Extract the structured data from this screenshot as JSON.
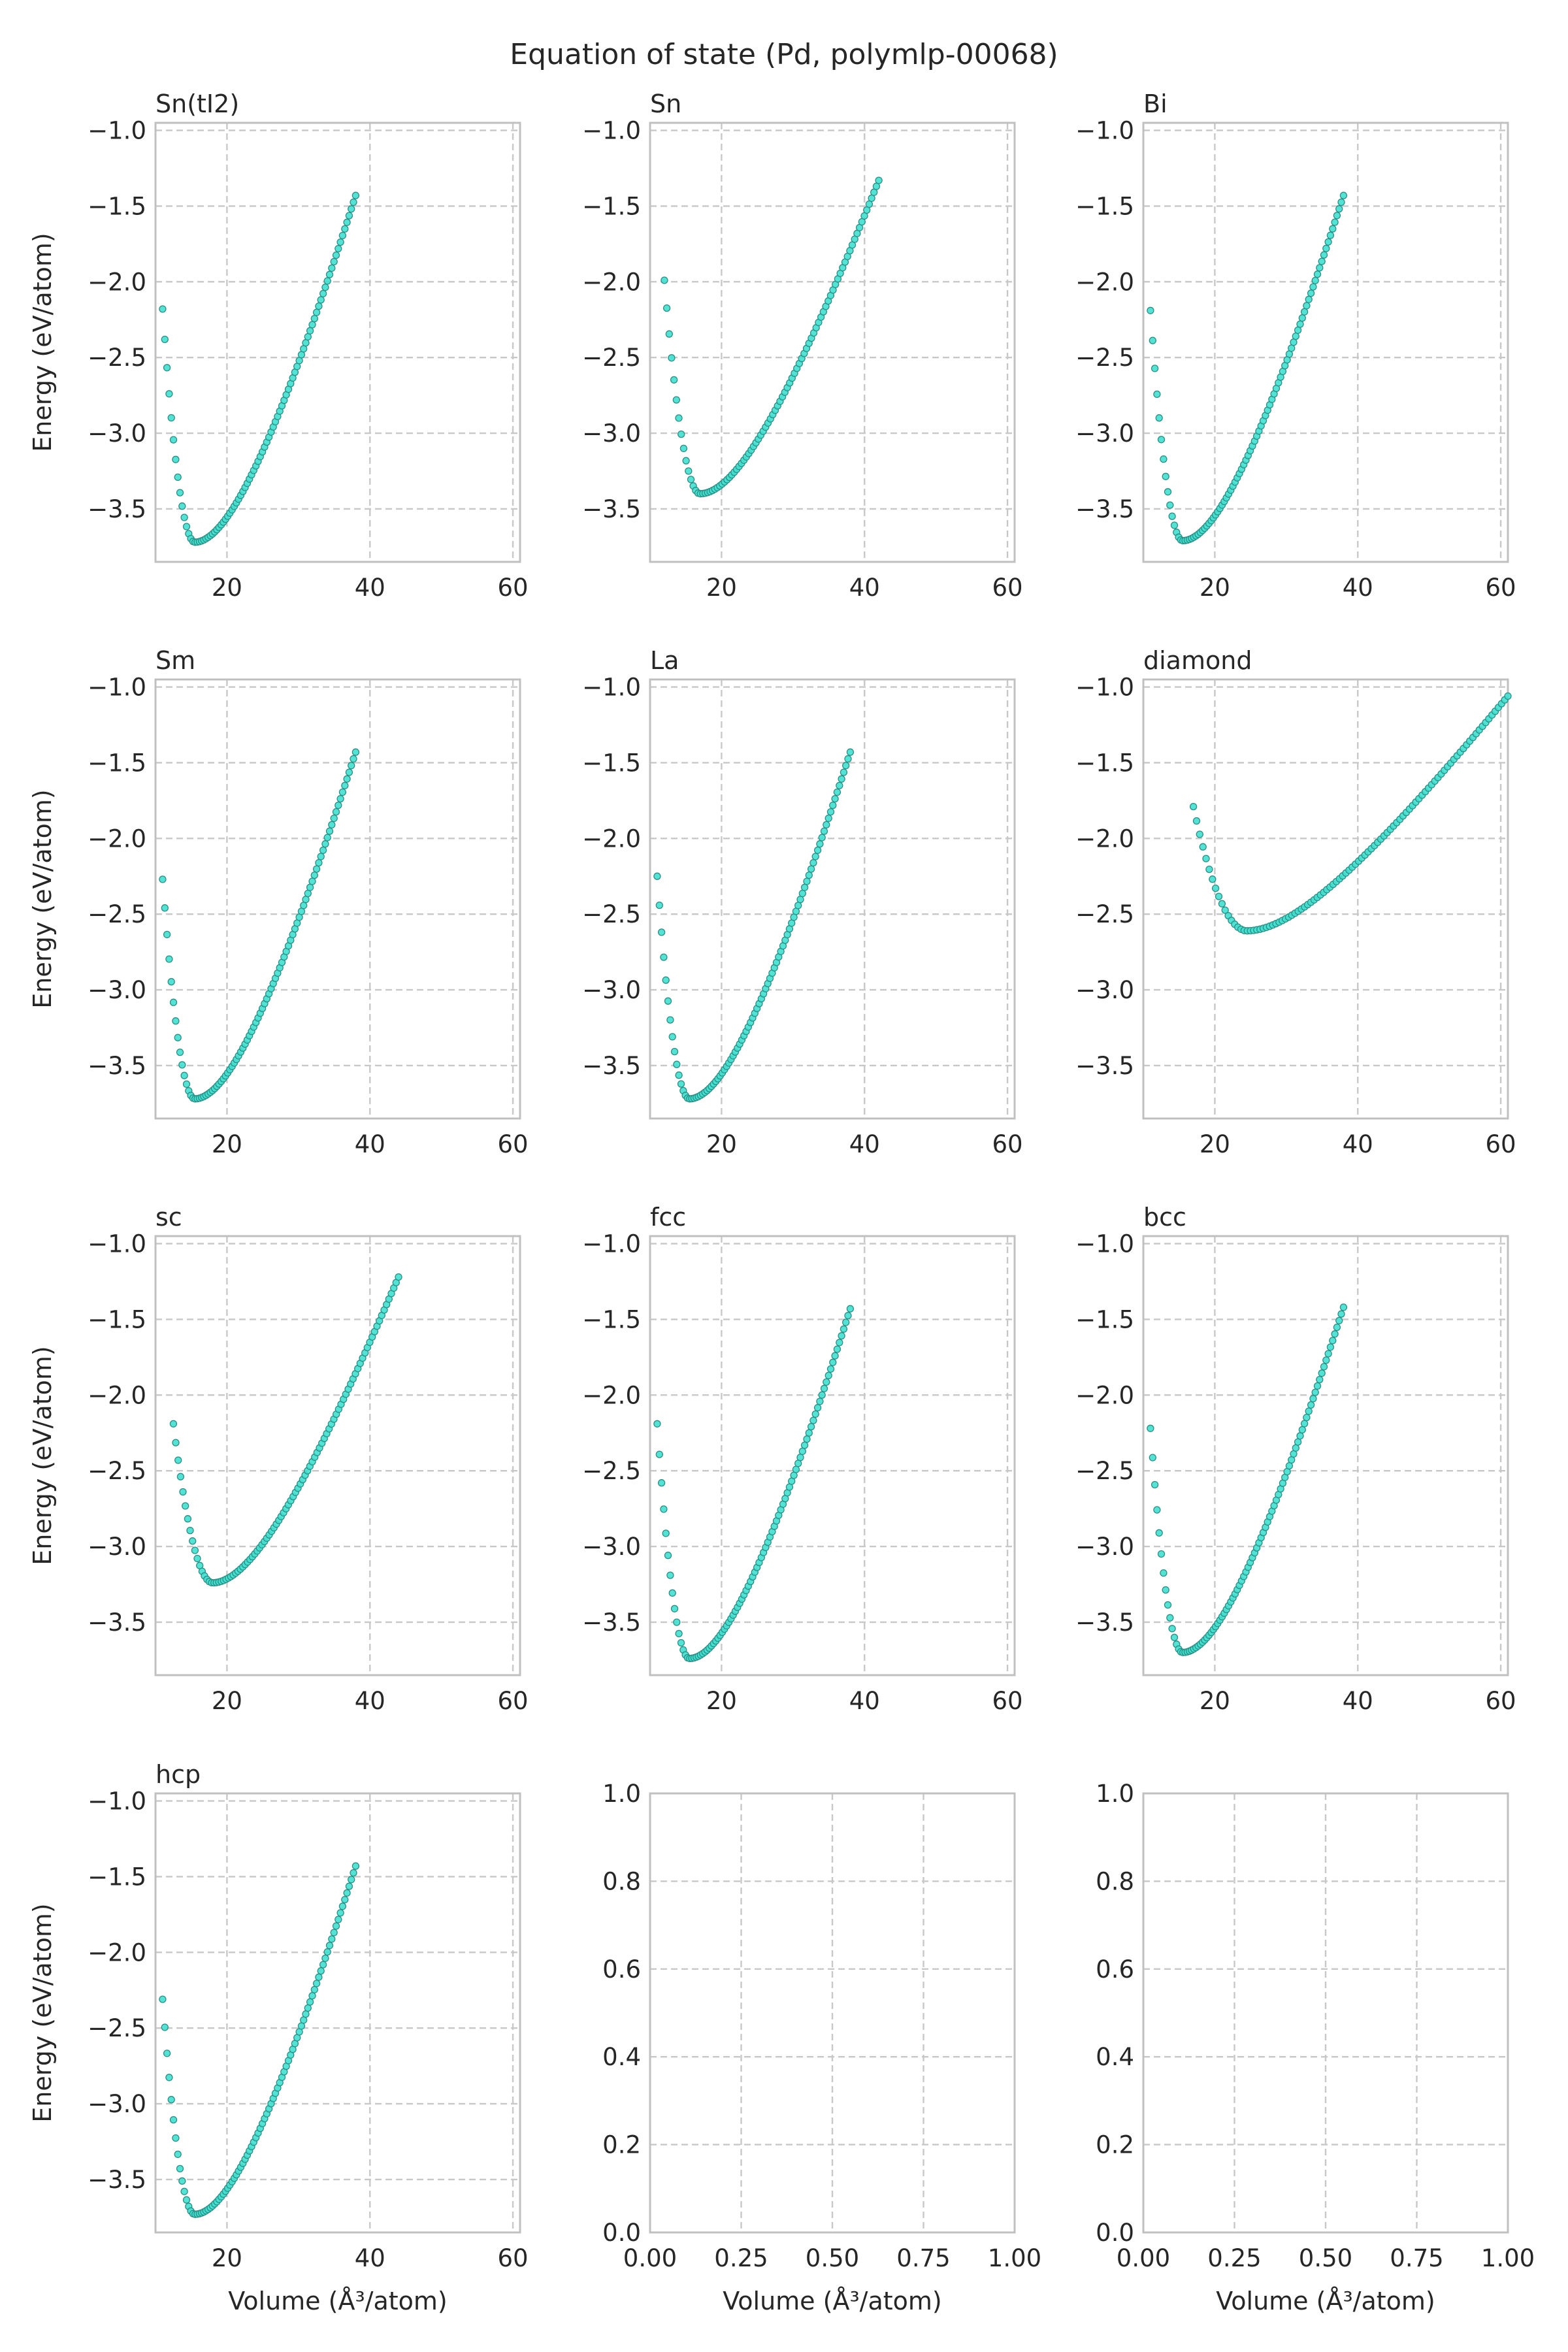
{
  "figure": {
    "title": "Equation of state (Pd, polymlp-00068)",
    "ylabel": "Energy (eV/atom)",
    "xlabel": "Volume (Å³/atom)"
  },
  "colors": {
    "marker_fill": "#40e0d0",
    "marker_edge": "#2a8f85",
    "grid": "#c8c8c8",
    "frame": "#c0c0c0",
    "text": "#262626"
  },
  "chart_data": [
    {
      "type": "scatter",
      "title": "Sn(tI2)",
      "xlim": [
        10,
        61
      ],
      "ylim": [
        -3.85,
        -0.95
      ],
      "xticks": [
        20,
        40,
        60
      ],
      "yticks": [
        -1.0,
        -1.5,
        -2.0,
        -2.5,
        -3.0,
        -3.5
      ],
      "curve": {
        "v0": 15.5,
        "e0": -3.72,
        "vmin": 11.0,
        "vmax": 38.0,
        "emin_v": -2.18,
        "emax_v": -1.43,
        "n": 90
      }
    },
    {
      "type": "scatter",
      "title": "Sn",
      "xlim": [
        10,
        61
      ],
      "ylim": [
        -3.85,
        -0.95
      ],
      "xticks": [
        20,
        40,
        60
      ],
      "yticks": [
        -1.0,
        -1.5,
        -2.0,
        -2.5,
        -3.0,
        -3.5
      ],
      "curve": {
        "v0": 17.0,
        "e0": -3.4,
        "vmin": 12.0,
        "vmax": 42.0,
        "emin_v": -1.99,
        "emax_v": -1.33,
        "n": 90
      }
    },
    {
      "type": "scatter",
      "title": "Bi",
      "xlim": [
        10,
        61
      ],
      "ylim": [
        -3.85,
        -0.95
      ],
      "xticks": [
        20,
        40,
        60
      ],
      "yticks": [
        -1.0,
        -1.5,
        -2.0,
        -2.5,
        -3.0,
        -3.5
      ],
      "curve": {
        "v0": 15.5,
        "e0": -3.71,
        "vmin": 11.0,
        "vmax": 38.0,
        "emin_v": -2.19,
        "emax_v": -1.43,
        "n": 90
      }
    },
    {
      "type": "scatter",
      "title": "Sm",
      "xlim": [
        10,
        61
      ],
      "ylim": [
        -3.85,
        -0.95
      ],
      "xticks": [
        20,
        40,
        60
      ],
      "yticks": [
        -1.0,
        -1.5,
        -2.0,
        -2.5,
        -3.0,
        -3.5
      ],
      "curve": {
        "v0": 15.5,
        "e0": -3.72,
        "vmin": 11.0,
        "vmax": 38.0,
        "emin_v": -2.27,
        "emax_v": -1.43,
        "n": 90
      }
    },
    {
      "type": "scatter",
      "title": "La",
      "xlim": [
        10,
        61
      ],
      "ylim": [
        -3.85,
        -0.95
      ],
      "xticks": [
        20,
        40,
        60
      ],
      "yticks": [
        -1.0,
        -1.5,
        -2.0,
        -2.5,
        -3.0,
        -3.5
      ],
      "curve": {
        "v0": 15.5,
        "e0": -3.72,
        "vmin": 11.0,
        "vmax": 38.0,
        "emin_v": -2.25,
        "emax_v": -1.43,
        "n": 90
      }
    },
    {
      "type": "scatter",
      "title": "diamond",
      "xlim": [
        10,
        61
      ],
      "ylim": [
        -3.85,
        -0.95
      ],
      "xticks": [
        20,
        40,
        60
      ],
      "yticks": [
        -1.0,
        -1.5,
        -2.0,
        -2.5,
        -3.0,
        -3.5
      ],
      "curve": {
        "v0": 24.5,
        "e0": -2.61,
        "vmin": 17.0,
        "vmax": 61.0,
        "emin_v": -1.79,
        "emax_v": -1.06,
        "n": 100
      }
    },
    {
      "type": "scatter",
      "title": "sc",
      "xlim": [
        10,
        61
      ],
      "ylim": [
        -3.85,
        -0.95
      ],
      "xticks": [
        20,
        40,
        60
      ],
      "yticks": [
        -1.0,
        -1.5,
        -2.0,
        -2.5,
        -3.0,
        -3.5
      ],
      "curve": {
        "v0": 18.0,
        "e0": -3.24,
        "vmin": 12.5,
        "vmax": 44.0,
        "emin_v": -2.19,
        "emax_v": -1.22,
        "n": 95
      }
    },
    {
      "type": "scatter",
      "title": "fcc",
      "xlim": [
        10,
        61
      ],
      "ylim": [
        -3.85,
        -0.95
      ],
      "xticks": [
        20,
        40,
        60
      ],
      "yticks": [
        -1.0,
        -1.5,
        -2.0,
        -2.5,
        -3.0,
        -3.5
      ],
      "curve": {
        "v0": 15.5,
        "e0": -3.74,
        "vmin": 11.0,
        "vmax": 38.0,
        "emin_v": -2.19,
        "emax_v": -1.43,
        "n": 90
      }
    },
    {
      "type": "scatter",
      "title": "bcc",
      "xlim": [
        10,
        61
      ],
      "ylim": [
        -3.85,
        -0.95
      ],
      "xticks": [
        20,
        40,
        60
      ],
      "yticks": [
        -1.0,
        -1.5,
        -2.0,
        -2.5,
        -3.0,
        -3.5
      ],
      "curve": {
        "v0": 15.5,
        "e0": -3.7,
        "vmin": 11.0,
        "vmax": 38.0,
        "emin_v": -2.22,
        "emax_v": -1.42,
        "n": 90
      }
    },
    {
      "type": "scatter",
      "title": "hcp",
      "xlim": [
        10,
        61
      ],
      "ylim": [
        -3.85,
        -0.95
      ],
      "xticks": [
        20,
        40,
        60
      ],
      "yticks": [
        -1.0,
        -1.5,
        -2.0,
        -2.5,
        -3.0,
        -3.5
      ],
      "curve": {
        "v0": 15.5,
        "e0": -3.73,
        "vmin": 11.0,
        "vmax": 38.0,
        "emin_v": -2.31,
        "emax_v": -1.43,
        "n": 90
      }
    },
    {
      "type": "scatter",
      "title": "",
      "empty": true,
      "xlim": [
        0,
        1
      ],
      "ylim": [
        0,
        1
      ],
      "xticks": [
        0.0,
        0.25,
        0.5,
        0.75,
        1.0
      ],
      "yticks": [
        0.0,
        0.2,
        0.4,
        0.6,
        0.8,
        1.0
      ],
      "xticklabels": [
        "0.00",
        "0.25",
        "0.50",
        "0.75",
        "1.00"
      ],
      "yticklabels": [
        "0.0",
        "0.2",
        "0.4",
        "0.6",
        "0.8",
        "1.0"
      ]
    },
    {
      "type": "scatter",
      "title": "",
      "empty": true,
      "xlim": [
        0,
        1
      ],
      "ylim": [
        0,
        1
      ],
      "xticks": [
        0.0,
        0.25,
        0.5,
        0.75,
        1.0
      ],
      "yticks": [
        0.0,
        0.2,
        0.4,
        0.6,
        0.8,
        1.0
      ],
      "xticklabels": [
        "0.00",
        "0.25",
        "0.50",
        "0.75",
        "1.00"
      ],
      "yticklabels": [
        "0.0",
        "0.2",
        "0.4",
        "0.6",
        "0.8",
        "1.0"
      ]
    }
  ]
}
